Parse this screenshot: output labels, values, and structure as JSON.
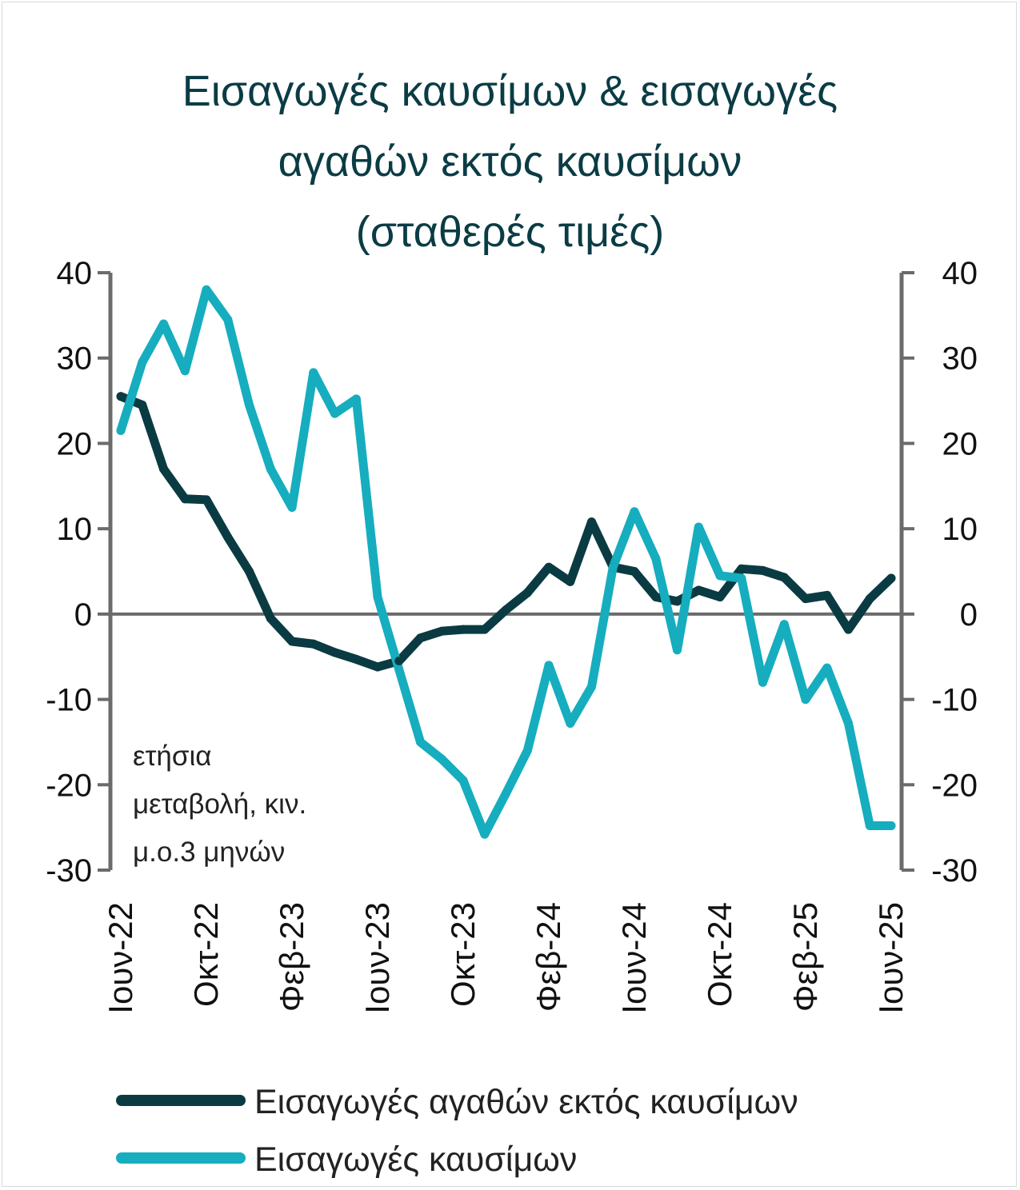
{
  "chart_data": {
    "type": "line",
    "title": [
      "Εισαγωγές καυσίμων & εισαγωγές",
      "αγαθών εκτός καυσίμων",
      "(σταθερές τιμές)"
    ],
    "annotation": [
      "ετήσια",
      "μεταβολή, κιν.",
      "μ.ο.3 μηνών"
    ],
    "ylim": [
      -30,
      40
    ],
    "yticks": [
      "40",
      "30",
      "20",
      "10",
      "0",
      "-10",
      "-20",
      "-30"
    ],
    "ytick_values": [
      40,
      30,
      20,
      10,
      0,
      -10,
      -20,
      -30
    ],
    "x_labels": [
      "Ιουν-22",
      "Οκτ-22",
      "Φεβ-23",
      "Ιουν-23",
      "Οκτ-23",
      "Φεβ-24",
      "Ιουν-24",
      "Οκτ-24",
      "Φεβ-25",
      "Ιουν-25"
    ],
    "x_label_months": [
      0,
      4,
      8,
      12,
      16,
      20,
      24,
      28,
      32,
      36
    ],
    "series": [
      {
        "name": "Εισαγωγές αγαθών εκτός καυσίμων",
        "color": "#0a3b43",
        "values": [
          25.5,
          24.5,
          17,
          13.5,
          13.4,
          9,
          5,
          -0.5,
          -3.2,
          -3.5,
          -4.5,
          -5.3,
          -6.2,
          -5.5,
          -2.8,
          -2,
          -1.8,
          -1.8,
          0.5,
          2.5,
          5.5,
          3.8,
          10.8,
          5.5,
          5,
          2,
          1.5,
          2.8,
          2,
          5.3,
          5.1,
          4.3,
          1.8,
          2.2,
          -1.8,
          1.8,
          4.2
        ]
      },
      {
        "name": "Εισαγωγές καυσίμων",
        "color": "#16adbf",
        "values": [
          21.5,
          29.5,
          34,
          28.5,
          38,
          34.5,
          24.5,
          17,
          12.5,
          28.3,
          23.5,
          25.2,
          2,
          -6.5,
          -15,
          -17,
          -19.5,
          -25.8,
          -21,
          -16,
          -6,
          -12.8,
          -8.5,
          5.5,
          12,
          6.5,
          -4.2,
          10.2,
          4.5,
          4.2,
          -8,
          -1.2,
          -10,
          -6.3,
          -12.8,
          -24.8,
          -24.8
        ]
      }
    ],
    "grid": false,
    "legend_position": "bottom"
  }
}
